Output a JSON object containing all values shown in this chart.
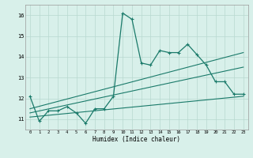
{
  "title": "",
  "xlabel": "Humidex (Indice chaleur)",
  "ylabel": "",
  "bg_color": "#d8f0ea",
  "grid_color": "#b8d8d0",
  "line_color": "#1a7a6a",
  "xlim": [
    -0.5,
    23.5
  ],
  "ylim": [
    10.5,
    16.5
  ],
  "xticks": [
    0,
    1,
    2,
    3,
    4,
    5,
    6,
    7,
    8,
    9,
    10,
    11,
    12,
    13,
    14,
    15,
    16,
    17,
    18,
    19,
    20,
    21,
    22,
    23
  ],
  "yticks": [
    11,
    12,
    13,
    14,
    15,
    16
  ],
  "series1_x": [
    0,
    1,
    2,
    3,
    4,
    5,
    6,
    7,
    8,
    9,
    10,
    11,
    12,
    13,
    14,
    15,
    16,
    17,
    18,
    19,
    20,
    21,
    22,
    23
  ],
  "series1_y": [
    12.1,
    10.9,
    11.4,
    11.4,
    11.6,
    11.3,
    10.8,
    11.5,
    11.5,
    12.1,
    16.1,
    15.8,
    13.7,
    13.6,
    14.3,
    14.2,
    14.2,
    14.6,
    14.1,
    13.6,
    12.8,
    12.8,
    12.2,
    12.2
  ],
  "series2_x": [
    0,
    23
  ],
  "series2_y": [
    11.5,
    14.2
  ],
  "series3_x": [
    0,
    23
  ],
  "series3_y": [
    11.3,
    13.5
  ],
  "series4_x": [
    0,
    23
  ],
  "series4_y": [
    11.1,
    12.1
  ]
}
